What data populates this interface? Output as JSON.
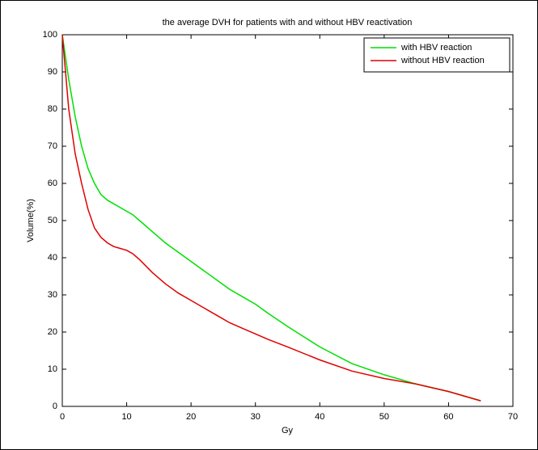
{
  "chart_data": {
    "type": "line",
    "title": "the average DVH for patients with and without HBV reactivation",
    "x_label": "Gy",
    "y_label": "Volume(%)",
    "x": [
      0,
      1,
      2,
      3,
      4,
      5,
      6,
      7,
      8,
      9,
      10,
      11,
      12,
      14,
      16,
      18,
      20,
      22,
      24,
      26,
      28,
      30,
      32,
      35,
      40,
      45,
      50,
      55,
      60,
      65
    ],
    "series": [
      {
        "name": "with HBV reaction",
        "color": "#00e000",
        "values": [
          100,
          88,
          78,
          70,
          64,
          60,
          57,
          55.5,
          54.5,
          53.5,
          52.5,
          51.5,
          50,
          47,
          44,
          41.5,
          39,
          36.5,
          34,
          31.5,
          29.5,
          27.5,
          25,
          21.5,
          16,
          11.5,
          8.5,
          6,
          4,
          1.5
        ]
      },
      {
        "name": "without HBV reaction",
        "color": "#e00000",
        "values": [
          100,
          80,
          68,
          60,
          53,
          48,
          45.5,
          44,
          43,
          42.5,
          42,
          41,
          39.5,
          36,
          33,
          30.5,
          28.5,
          26.5,
          24.5,
          22.5,
          21,
          19.5,
          18,
          16,
          12.5,
          9.5,
          7.5,
          6,
          4,
          1.5
        ]
      }
    ],
    "xlim": [
      0,
      70
    ],
    "xticks": [
      0,
      10,
      20,
      30,
      40,
      50,
      60,
      70
    ],
    "ylim": [
      0,
      100
    ],
    "yticks": [
      0,
      10,
      20,
      30,
      40,
      50,
      60,
      70,
      80,
      90,
      100
    ],
    "legend": "top-right"
  }
}
